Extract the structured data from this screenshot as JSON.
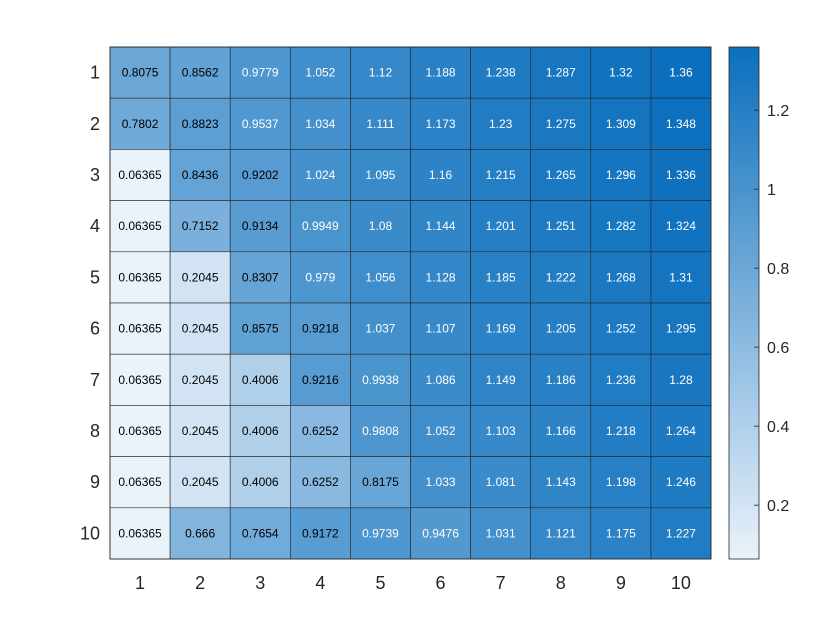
{
  "chart_data": {
    "type": "heatmap",
    "title": "",
    "xlabel": "",
    "ylabel": "",
    "x_categories": [
      "1",
      "2",
      "3",
      "4",
      "5",
      "6",
      "7",
      "8",
      "9",
      "10"
    ],
    "y_categories": [
      "1",
      "2",
      "3",
      "4",
      "5",
      "6",
      "7",
      "8",
      "9",
      "10"
    ],
    "values": [
      [
        0.8075,
        0.8562,
        0.9779,
        1.052,
        1.12,
        1.188,
        1.238,
        1.287,
        1.32,
        1.36
      ],
      [
        0.7802,
        0.8823,
        0.9537,
        1.034,
        1.111,
        1.173,
        1.23,
        1.275,
        1.309,
        1.348
      ],
      [
        0.06365,
        0.8436,
        0.9202,
        1.024,
        1.095,
        1.16,
        1.215,
        1.265,
        1.296,
        1.336
      ],
      [
        0.06365,
        0.7152,
        0.9134,
        0.9949,
        1.08,
        1.144,
        1.201,
        1.251,
        1.282,
        1.324
      ],
      [
        0.06365,
        0.2045,
        0.8307,
        0.979,
        1.056,
        1.128,
        1.185,
        1.222,
        1.268,
        1.31
      ],
      [
        0.06365,
        0.2045,
        0.8575,
        0.9218,
        1.037,
        1.107,
        1.169,
        1.205,
        1.252,
        1.295
      ],
      [
        0.06365,
        0.2045,
        0.4006,
        0.9216,
        0.9938,
        1.086,
        1.149,
        1.186,
        1.236,
        1.28
      ],
      [
        0.06365,
        0.2045,
        0.4006,
        0.6252,
        0.9808,
        1.052,
        1.103,
        1.166,
        1.218,
        1.264
      ],
      [
        0.06365,
        0.2045,
        0.4006,
        0.6252,
        0.8175,
        1.033,
        1.081,
        1.143,
        1.198,
        1.246
      ],
      [
        0.06365,
        0.666,
        0.7654,
        0.9172,
        0.9739,
        0.9476,
        1.031,
        1.121,
        1.175,
        1.227
      ]
    ],
    "value_labels": [
      [
        "0.8075",
        "0.8562",
        "0.9779",
        "1.052",
        "1.12",
        "1.188",
        "1.238",
        "1.287",
        "1.32",
        "1.36"
      ],
      [
        "0.7802",
        "0.8823",
        "0.9537",
        "1.034",
        "1.111",
        "1.173",
        "1.23",
        "1.275",
        "1.309",
        "1.348"
      ],
      [
        "0.06365",
        "0.8436",
        "0.9202",
        "1.024",
        "1.095",
        "1.16",
        "1.215",
        "1.265",
        "1.296",
        "1.336"
      ],
      [
        "0.06365",
        "0.7152",
        "0.9134",
        "0.9949",
        "1.08",
        "1.144",
        "1.201",
        "1.251",
        "1.282",
        "1.324"
      ],
      [
        "0.06365",
        "0.2045",
        "0.8307",
        "0.979",
        "1.056",
        "1.128",
        "1.185",
        "1.222",
        "1.268",
        "1.31"
      ],
      [
        "0.06365",
        "0.2045",
        "0.8575",
        "0.9218",
        "1.037",
        "1.107",
        "1.169",
        "1.205",
        "1.252",
        "1.295"
      ],
      [
        "0.06365",
        "0.2045",
        "0.4006",
        "0.9216",
        "0.9938",
        "1.086",
        "1.149",
        "1.186",
        "1.236",
        "1.28"
      ],
      [
        "0.06365",
        "0.2045",
        "0.4006",
        "0.6252",
        "0.9808",
        "1.052",
        "1.103",
        "1.166",
        "1.218",
        "1.264"
      ],
      [
        "0.06365",
        "0.2045",
        "0.4006",
        "0.6252",
        "0.8175",
        "1.033",
        "1.081",
        "1.143",
        "1.198",
        "1.246"
      ],
      [
        "0.06365",
        "0.666",
        "0.7654",
        "0.9172",
        "0.9739",
        "0.9476",
        "1.031",
        "1.121",
        "1.175",
        "1.227"
      ]
    ],
    "colorbar": {
      "range": [
        0.06365,
        1.36
      ],
      "ticks": [
        0.2,
        0.4,
        0.6,
        0.8,
        1,
        1.2
      ],
      "tick_labels": [
        "0.2",
        "0.4",
        "0.6",
        "0.8",
        "1",
        "1.2"
      ],
      "placement": "right"
    },
    "colormap": [
      "#eaf2fa",
      "#0b6fbd"
    ],
    "grid": true
  }
}
